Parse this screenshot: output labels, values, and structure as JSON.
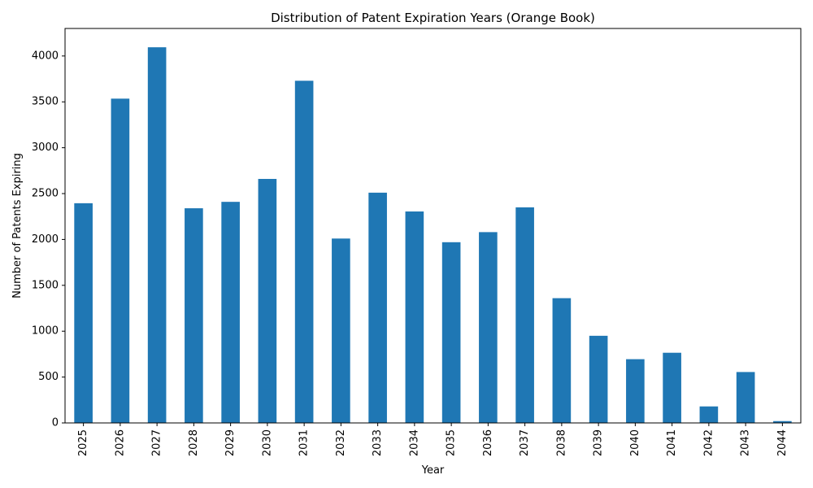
{
  "chart_data": {
    "type": "bar",
    "title": "Distribution of Patent Expiration Years (Orange Book)",
    "xlabel": "Year",
    "ylabel": "Number of Patents Expiring",
    "categories": [
      "2025",
      "2026",
      "2027",
      "2028",
      "2029",
      "2030",
      "2031",
      "2032",
      "2033",
      "2034",
      "2035",
      "2036",
      "2037",
      "2038",
      "2039",
      "2040",
      "2041",
      "2042",
      "2043",
      "2044"
    ],
    "values": [
      2395,
      3535,
      4095,
      2340,
      2410,
      2660,
      3730,
      2010,
      2510,
      2305,
      1970,
      2080,
      2350,
      1360,
      950,
      695,
      765,
      180,
      555,
      20
    ],
    "ylim": [
      0,
      4300
    ],
    "yticks": [
      0,
      500,
      1000,
      1500,
      2000,
      2500,
      3000,
      3500,
      4000
    ],
    "grid": false,
    "legend": "none",
    "color": "#1f77b4"
  }
}
